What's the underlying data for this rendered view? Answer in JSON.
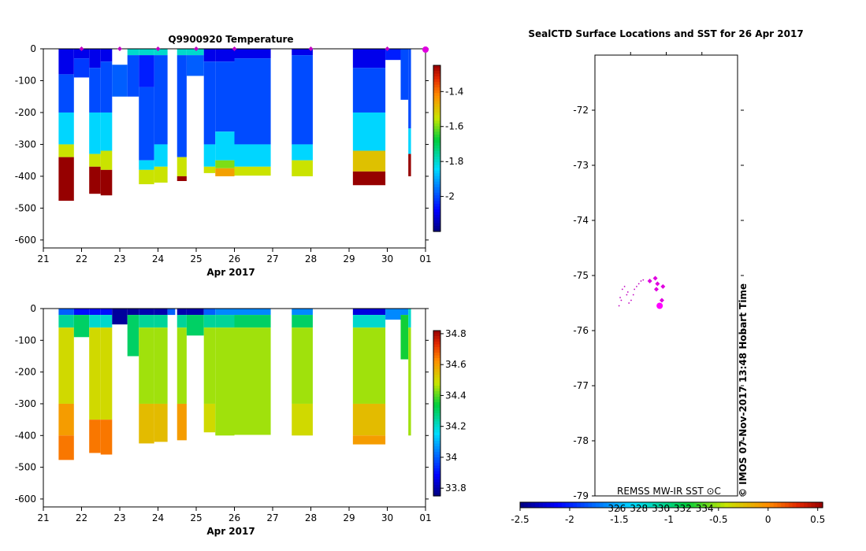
{
  "chart_data": [
    {
      "type": "heatmap",
      "title": "Q9900920  Temperature",
      "xlabel": "Apr 2017",
      "x_ticks": [
        "21",
        "22",
        "23",
        "24",
        "25",
        "26",
        "27",
        "28",
        "29",
        "30",
        "01"
      ],
      "y_ticks": [
        "0",
        "-100",
        "-200",
        "-300",
        "-400",
        "-500",
        "-600"
      ],
      "ylim": [
        -625,
        0
      ],
      "xlim": [
        21,
        31
      ],
      "colorbar": {
        "range": [
          -2.2,
          -1.25
        ],
        "ticks": [
          "-1.4",
          "-1.6",
          "-1.8",
          "-2"
        ],
        "tick_values": [
          -1.4,
          -1.6,
          -1.8,
          -2.0
        ]
      },
      "profile_markers": [
        22,
        23,
        24,
        25,
        26,
        28,
        30,
        31
      ],
      "profiles": [
        {
          "t0": 21.4,
          "t1": 21.8,
          "top": 0,
          "bottom": 477,
          "layers": [
            {
              "to": 80,
              "v": -2.1
            },
            {
              "to": 200,
              "v": -2.0
            },
            {
              "to": 300,
              "v": -1.85
            },
            {
              "to": 340,
              "v": -1.55
            },
            {
              "to": 477,
              "v": -1.25
            }
          ]
        },
        {
          "t0": 21.8,
          "t1": 22.2,
          "top": 0,
          "bottom": 90,
          "layers": [
            {
              "to": 30,
              "v": -2.1
            },
            {
              "to": 90,
              "v": -2.02
            }
          ]
        },
        {
          "t0": 22.2,
          "t1": 22.5,
          "top": 0,
          "bottom": 455,
          "layers": [
            {
              "to": 60,
              "v": -2.1
            },
            {
              "to": 200,
              "v": -2.0
            },
            {
              "to": 330,
              "v": -1.85
            },
            {
              "to": 370,
              "v": -1.55
            },
            {
              "to": 455,
              "v": -1.25
            }
          ]
        },
        {
          "t0": 22.5,
          "t1": 22.8,
          "top": 0,
          "bottom": 460,
          "layers": [
            {
              "to": 40,
              "v": -2.1
            },
            {
              "to": 200,
              "v": -2.0
            },
            {
              "to": 320,
              "v": -1.85
            },
            {
              "to": 380,
              "v": -1.55
            },
            {
              "to": 460,
              "v": -1.25
            }
          ]
        },
        {
          "t0": 22.8,
          "t1": 23.2,
          "top": 50,
          "bottom": 150,
          "layers": [
            {
              "to": 150,
              "v": -1.98
            }
          ]
        },
        {
          "t0": 23.2,
          "t1": 23.5,
          "top": 0,
          "bottom": 150,
          "layers": [
            {
              "to": 20,
              "v": -1.8
            },
            {
              "to": 150,
              "v": -2.0
            }
          ]
        },
        {
          "t0": 23.5,
          "t1": 23.9,
          "top": 0,
          "bottom": 425,
          "layers": [
            {
              "to": 20,
              "v": -1.8
            },
            {
              "to": 120,
              "v": -2.05
            },
            {
              "to": 350,
              "v": -2.0
            },
            {
              "to": 380,
              "v": -1.85
            },
            {
              "to": 425,
              "v": -1.55
            }
          ]
        },
        {
          "t0": 23.9,
          "t1": 24.25,
          "top": 0,
          "bottom": 420,
          "layers": [
            {
              "to": 20,
              "v": -1.8
            },
            {
              "to": 300,
              "v": -2.0
            },
            {
              "to": 370,
              "v": -1.85
            },
            {
              "to": 420,
              "v": -1.55
            }
          ]
        },
        {
          "t0": 24.5,
          "t1": 24.75,
          "top": 0,
          "bottom": 415,
          "layers": [
            {
              "to": 20,
              "v": -1.8
            },
            {
              "to": 340,
              "v": -2.0
            },
            {
              "to": 400,
              "v": -1.55
            },
            {
              "to": 415,
              "v": -1.25
            }
          ]
        },
        {
          "t0": 24.75,
          "t1": 25.2,
          "top": 0,
          "bottom": 85,
          "layers": [
            {
              "to": 20,
              "v": -1.8
            },
            {
              "to": 85,
              "v": -1.98
            }
          ]
        },
        {
          "t0": 25.2,
          "t1": 25.5,
          "top": 0,
          "bottom": 390,
          "layers": [
            {
              "to": 40,
              "v": -2.1
            },
            {
              "to": 300,
              "v": -2.0
            },
            {
              "to": 370,
              "v": -1.85
            },
            {
              "to": 390,
              "v": -1.55
            }
          ]
        },
        {
          "t0": 25.5,
          "t1": 26.0,
          "top": 0,
          "bottom": 400,
          "layers": [
            {
              "to": 40,
              "v": -2.1
            },
            {
              "to": 260,
              "v": -2.0
            },
            {
              "to": 350,
              "v": -1.85
            },
            {
              "to": 375,
              "v": -1.6
            },
            {
              "to": 400,
              "v": -1.45
            }
          ]
        },
        {
          "t0": 26.0,
          "t1": 26.95,
          "top": 0,
          "bottom": 398,
          "layers": [
            {
              "to": 30,
              "v": -2.1
            },
            {
              "to": 300,
              "v": -2.0
            },
            {
              "to": 370,
              "v": -1.85
            },
            {
              "to": 398,
              "v": -1.55
            }
          ]
        },
        {
          "t0": 27.5,
          "t1": 28.05,
          "top": 0,
          "bottom": 400,
          "layers": [
            {
              "to": 20,
              "v": -2.1
            },
            {
              "to": 300,
              "v": -2.0
            },
            {
              "to": 350,
              "v": -1.85
            },
            {
              "to": 400,
              "v": -1.55
            }
          ]
        },
        {
          "t0": 29.1,
          "t1": 29.95,
          "top": 0,
          "bottom": 428,
          "layers": [
            {
              "to": 60,
              "v": -2.1
            },
            {
              "to": 200,
              "v": -2.0
            },
            {
              "to": 320,
              "v": -1.85
            },
            {
              "to": 385,
              "v": -1.5
            },
            {
              "to": 428,
              "v": -1.25
            }
          ]
        },
        {
          "t0": 29.95,
          "t1": 30.35,
          "top": 0,
          "bottom": 35,
          "layers": [
            {
              "to": 35,
              "v": -2.05
            }
          ]
        },
        {
          "t0": 30.35,
          "t1": 30.55,
          "top": 0,
          "bottom": 160,
          "layers": [
            {
              "to": 160,
              "v": -2.0
            }
          ]
        },
        {
          "t0": 30.55,
          "t1": 30.62,
          "top": 0,
          "bottom": 400,
          "layers": [
            {
              "to": 250,
              "v": -2.0
            },
            {
              "to": 330,
              "v": -1.85
            },
            {
              "to": 400,
              "v": -1.25
            }
          ]
        }
      ]
    },
    {
      "type": "heatmap",
      "title": "",
      "xlabel": "Apr 2017",
      "x_ticks": [
        "21",
        "22",
        "23",
        "24",
        "25",
        "26",
        "27",
        "28",
        "29",
        "30",
        "01"
      ],
      "y_ticks": [
        "0",
        "-100",
        "-200",
        "-300",
        "-400",
        "-500",
        "-600"
      ],
      "ylim": [
        -625,
        0
      ],
      "xlim": [
        21,
        31
      ],
      "colorbar": {
        "range": [
          33.75,
          34.82
        ],
        "ticks": [
          "34.8",
          "34.6",
          "34.4",
          "34.2",
          "34",
          "33.8"
        ],
        "tick_values": [
          34.8,
          34.6,
          34.4,
          34.2,
          34.0,
          33.8
        ]
      },
      "profiles": [
        {
          "t0": 21.4,
          "t1": 21.8,
          "top": 0,
          "bottom": 477,
          "layers": [
            {
              "to": 20,
              "v": 34.0
            },
            {
              "to": 60,
              "v": 34.25
            },
            {
              "to": 300,
              "v": 34.5
            },
            {
              "to": 400,
              "v": 34.6
            },
            {
              "to": 477,
              "v": 34.65
            }
          ]
        },
        {
          "t0": 21.8,
          "t1": 22.2,
          "top": 0,
          "bottom": 90,
          "layers": [
            {
              "to": 20,
              "v": 33.9
            },
            {
              "to": 90,
              "v": 34.3
            }
          ]
        },
        {
          "t0": 22.2,
          "t1": 22.5,
          "top": 0,
          "bottom": 455,
          "layers": [
            {
              "to": 20,
              "v": 33.9
            },
            {
              "to": 60,
              "v": 34.2
            },
            {
              "to": 350,
              "v": 34.5
            },
            {
              "to": 455,
              "v": 34.65
            }
          ]
        },
        {
          "t0": 22.5,
          "t1": 22.8,
          "top": 0,
          "bottom": 460,
          "layers": [
            {
              "to": 20,
              "v": 33.9
            },
            {
              "to": 60,
              "v": 34.2
            },
            {
              "to": 350,
              "v": 34.5
            },
            {
              "to": 460,
              "v": 34.65
            }
          ]
        },
        {
          "t0": 22.8,
          "t1": 23.2,
          "top": 0,
          "bottom": 50,
          "layers": [
            {
              "to": 50,
              "v": 33.78
            }
          ]
        },
        {
          "t0": 23.2,
          "t1": 23.5,
          "top": 0,
          "bottom": 150,
          "layers": [
            {
              "to": 20,
              "v": 33.78
            },
            {
              "to": 150,
              "v": 34.3
            }
          ]
        },
        {
          "t0": 23.5,
          "t1": 23.9,
          "top": 0,
          "bottom": 425,
          "layers": [
            {
              "to": 20,
              "v": 33.8
            },
            {
              "to": 60,
              "v": 34.25
            },
            {
              "to": 300,
              "v": 34.45
            },
            {
              "to": 425,
              "v": 34.55
            }
          ]
        },
        {
          "t0": 23.9,
          "t1": 24.25,
          "top": 0,
          "bottom": 420,
          "layers": [
            {
              "to": 20,
              "v": 33.8
            },
            {
              "to": 60,
              "v": 34.25
            },
            {
              "to": 300,
              "v": 34.45
            },
            {
              "to": 420,
              "v": 34.55
            }
          ]
        },
        {
          "t0": 24.25,
          "t1": 24.45,
          "top": 0,
          "bottom": 20,
          "layers": [
            {
              "to": 20,
              "v": 34.0
            }
          ]
        },
        {
          "t0": 24.5,
          "t1": 24.75,
          "top": 0,
          "bottom": 415,
          "layers": [
            {
              "to": 20,
              "v": 33.8
            },
            {
              "to": 60,
              "v": 34.25
            },
            {
              "to": 300,
              "v": 34.45
            },
            {
              "to": 415,
              "v": 34.6
            }
          ]
        },
        {
          "t0": 24.75,
          "t1": 25.2,
          "top": 0,
          "bottom": 85,
          "layers": [
            {
              "to": 20,
              "v": 33.8
            },
            {
              "to": 85,
              "v": 34.3
            }
          ]
        },
        {
          "t0": 25.2,
          "t1": 25.5,
          "top": 0,
          "bottom": 390,
          "layers": [
            {
              "to": 20,
              "v": 34.0
            },
            {
              "to": 60,
              "v": 34.25
            },
            {
              "to": 300,
              "v": 34.45
            },
            {
              "to": 390,
              "v": 34.5
            }
          ]
        },
        {
          "t0": 25.5,
          "t1": 26.0,
          "top": 0,
          "bottom": 400,
          "layers": [
            {
              "to": 20,
              "v": 34.05
            },
            {
              "to": 60,
              "v": 34.25
            },
            {
              "to": 400,
              "v": 34.45
            }
          ]
        },
        {
          "t0": 26.0,
          "t1": 26.95,
          "top": 0,
          "bottom": 398,
          "layers": [
            {
              "to": 20,
              "v": 34.05
            },
            {
              "to": 60,
              "v": 34.3
            },
            {
              "to": 398,
              "v": 34.45
            }
          ]
        },
        {
          "t0": 27.5,
          "t1": 28.05,
          "top": 0,
          "bottom": 400,
          "layers": [
            {
              "to": 20,
              "v": 34.05
            },
            {
              "to": 60,
              "v": 34.3
            },
            {
              "to": 300,
              "v": 34.45
            },
            {
              "to": 400,
              "v": 34.5
            }
          ]
        },
        {
          "t0": 29.1,
          "t1": 29.95,
          "top": 0,
          "bottom": 428,
          "layers": [
            {
              "to": 20,
              "v": 33.85
            },
            {
              "to": 60,
              "v": 34.2
            },
            {
              "to": 300,
              "v": 34.45
            },
            {
              "to": 400,
              "v": 34.55
            },
            {
              "to": 428,
              "v": 34.6
            }
          ]
        },
        {
          "t0": 29.95,
          "t1": 30.35,
          "top": 0,
          "bottom": 35,
          "layers": [
            {
              "to": 35,
              "v": 34.05
            }
          ]
        },
        {
          "t0": 30.35,
          "t1": 30.55,
          "top": 0,
          "bottom": 160,
          "layers": [
            {
              "to": 20,
              "v": 34.05
            },
            {
              "to": 160,
              "v": 34.35
            }
          ]
        },
        {
          "t0": 30.55,
          "t1": 30.62,
          "top": 0,
          "bottom": 400,
          "layers": [
            {
              "to": 60,
              "v": 34.2
            },
            {
              "to": 400,
              "v": 34.45
            }
          ]
        }
      ]
    },
    {
      "type": "scatter",
      "title": "SealCTD Surface Locations and SST for 26 Apr 2017",
      "y_ticks": [
        "-72",
        "-73",
        "-74",
        "-75",
        "-76",
        "-77",
        "-78",
        "-79"
      ],
      "y_tick_values": [
        -72,
        -73,
        -74,
        -75,
        -76,
        -77,
        -78,
        -79
      ],
      "ylim": [
        -79,
        -71
      ],
      "xlim": [
        324,
        337
      ],
      "x_ticks": [
        "326",
        "328",
        "330",
        "332",
        "334"
      ],
      "x_tick_values": [
        326,
        328,
        330,
        332,
        334
      ],
      "legend_label": "REMSS MW-IR SST ⊙C",
      "credit": "©  IMOS 07-Nov-2017 13:48 Hobart Time",
      "colorbar": {
        "range": [
          -2.5,
          0.55
        ],
        "ticks": [
          "-2.5",
          "-2",
          "-1.5",
          "-1",
          "-0.5",
          "0",
          "0.5"
        ],
        "tick_values": [
          -2.5,
          -2.0,
          -1.5,
          -1.0,
          -0.5,
          0.0,
          0.5
        ]
      },
      "track": [
        {
          "lon": 326.2,
          "lat": -75.55
        },
        {
          "lon": 326.3,
          "lat": -75.4
        },
        {
          "lon": 326.5,
          "lat": -75.25
        },
        {
          "lon": 326.7,
          "lat": -75.2
        },
        {
          "lon": 326.9,
          "lat": -75.35
        },
        {
          "lon": 327.1,
          "lat": -75.5
        },
        {
          "lon": 327.3,
          "lat": -75.45
        },
        {
          "lon": 327.5,
          "lat": -75.35
        },
        {
          "lon": 327.6,
          "lat": -75.25
        },
        {
          "lon": 327.8,
          "lat": -75.2
        },
        {
          "lon": 328.0,
          "lat": -75.15
        },
        {
          "lon": 328.2,
          "lat": -75.1
        },
        {
          "lon": 328.4,
          "lat": -75.08
        },
        {
          "lon": 326.4,
          "lat": -75.45
        },
        {
          "lon": 327.0,
          "lat": -75.3
        }
      ],
      "locations": [
        {
          "lon": 329.0,
          "lat": -75.1
        },
        {
          "lon": 329.5,
          "lat": -75.05
        },
        {
          "lon": 329.7,
          "lat": -75.15
        },
        {
          "lon": 329.6,
          "lat": -75.25
        },
        {
          "lon": 330.2,
          "lat": -75.2
        },
        {
          "lon": 330.1,
          "lat": -75.45
        }
      ],
      "current": {
        "lon": 329.9,
        "lat": -75.55
      }
    }
  ]
}
